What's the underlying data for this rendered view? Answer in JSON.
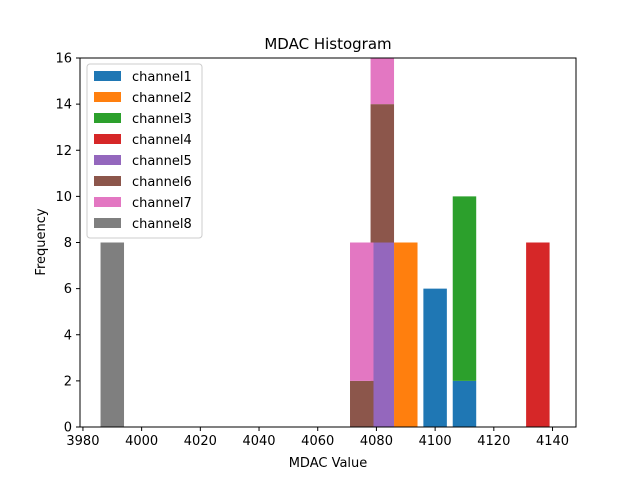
{
  "chart_data": {
    "type": "bar",
    "subtype": "stacked-histogram",
    "title": "MDAC Histogram",
    "xlabel": "MDAC Value",
    "ylabel": "Frequency",
    "xlim": [
      3979,
      4148
    ],
    "ylim": [
      0,
      16
    ],
    "xticks": [
      3980,
      4000,
      4020,
      4040,
      4060,
      4080,
      4100,
      4120,
      4140
    ],
    "yticks": [
      0,
      2,
      4,
      6,
      8,
      10,
      12,
      14,
      16
    ],
    "grid": false,
    "legend_position": "top-left",
    "series": [
      {
        "name": "channel1",
        "color": "#1f77b4",
        "bars": [
          {
            "x0": 4096,
            "x1": 4104,
            "bottom": 0,
            "value": 6
          },
          {
            "x0": 4106,
            "x1": 4114,
            "bottom": 0,
            "value": 2
          }
        ]
      },
      {
        "name": "channel2",
        "color": "#ff7f0e",
        "bars": [
          {
            "x0": 4086,
            "x1": 4094,
            "bottom": 0,
            "value": 8
          }
        ]
      },
      {
        "name": "channel3",
        "color": "#2ca02c",
        "bars": [
          {
            "x0": 4106,
            "x1": 4114,
            "bottom": 2,
            "value": 8
          }
        ]
      },
      {
        "name": "channel4",
        "color": "#d62728",
        "bars": [
          {
            "x0": 4131,
            "x1": 4139,
            "bottom": 0,
            "value": 8
          }
        ]
      },
      {
        "name": "channel5",
        "color": "#9467bd",
        "bars": [
          {
            "x0": 4078,
            "x1": 4086,
            "bottom": 0,
            "value": 8
          }
        ]
      },
      {
        "name": "channel6",
        "color": "#8c564b",
        "bars": [
          {
            "x0": 4071,
            "x1": 4079,
            "bottom": 0,
            "value": 2
          },
          {
            "x0": 4078,
            "x1": 4086,
            "bottom": 8,
            "value": 6
          }
        ]
      },
      {
        "name": "channel7",
        "color": "#e377c2",
        "bars": [
          {
            "x0": 4071,
            "x1": 4079,
            "bottom": 2,
            "value": 6
          },
          {
            "x0": 4078,
            "x1": 4086,
            "bottom": 14,
            "value": 2
          }
        ]
      },
      {
        "name": "channel8",
        "color": "#7f7f7f",
        "bars": [
          {
            "x0": 3986,
            "x1": 3994,
            "bottom": 0,
            "value": 8
          }
        ]
      }
    ]
  }
}
